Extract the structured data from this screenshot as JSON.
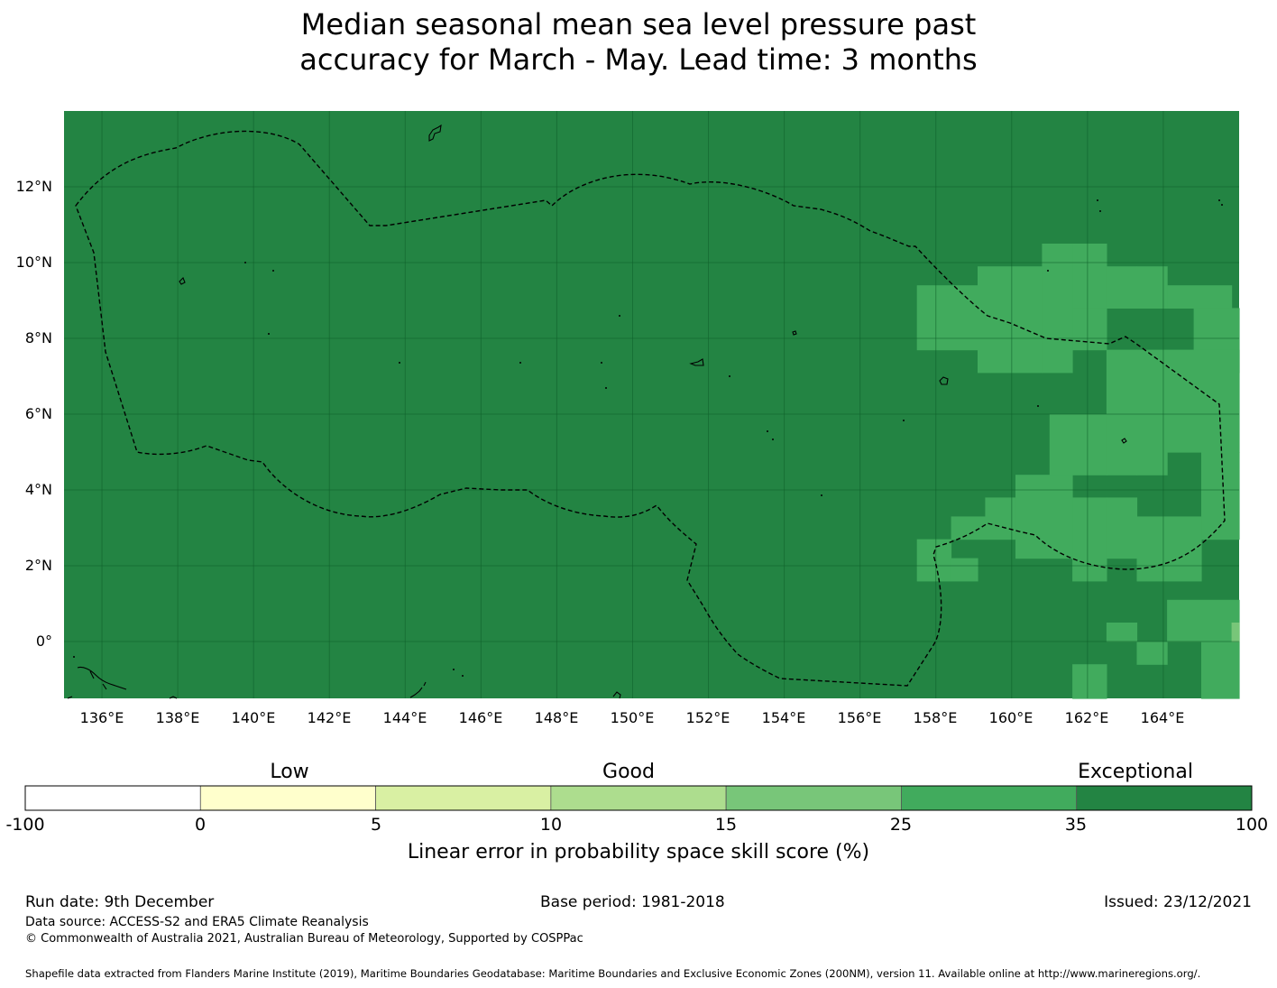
{
  "title": {
    "line1": "Median seasonal mean sea level pressure past",
    "line2": "accuracy for March - May. Lead time: 3 months"
  },
  "map": {
    "lon_range": [
      135.0,
      166.0
    ],
    "lat_range": [
      -1.5,
      14.0
    ],
    "lon_ticks": [
      "136°E",
      "138°E",
      "140°E",
      "142°E",
      "144°E",
      "146°E",
      "148°E",
      "150°E",
      "152°E",
      "154°E",
      "156°E",
      "158°E",
      "160°E",
      "162°E",
      "164°E"
    ],
    "lat_ticks": [
      "12°N",
      "10°N",
      "8°N",
      "6°N",
      "4°N",
      "2°N",
      "0°"
    ],
    "gridlines": true,
    "background_skill_class": "35-100",
    "eez_boundary": "dashed",
    "regions": [
      {
        "class": "25-35",
        "cells": [
          [
            157.5,
            159.1,
            7.7,
            9.4
          ],
          [
            159.1,
            160.8,
            7.1,
            9.9
          ],
          [
            160.8,
            161.6,
            7.1,
            10.5
          ],
          [
            161.6,
            162.5,
            8.8,
            10.5
          ],
          [
            162.5,
            163.3,
            8.8,
            9.9
          ],
          [
            163.3,
            164.1,
            8.8,
            9.9
          ],
          [
            161.6,
            162.5,
            7.7,
            8.8
          ],
          [
            164.1,
            165.8,
            8.8,
            9.4
          ],
          [
            164.8,
            166.0,
            7.1,
            8.8
          ]
        ]
      },
      {
        "class": "25-35",
        "cells": [
          [
            161.0,
            162.5,
            4.4,
            6.0
          ],
          [
            162.5,
            163.3,
            4.4,
            7.7
          ],
          [
            163.3,
            166.0,
            5.0,
            7.7
          ],
          [
            163.3,
            164.1,
            4.4,
            5.0
          ],
          [
            165.0,
            166.0,
            2.7,
            5.0
          ],
          [
            160.1,
            161.6,
            2.2,
            4.4
          ],
          [
            161.6,
            162.5,
            1.6,
            3.8
          ],
          [
            162.5,
            163.3,
            2.2,
            3.8
          ],
          [
            163.3,
            165.0,
            1.6,
            3.3
          ],
          [
            158.4,
            160.1,
            2.7,
            3.3
          ],
          [
            159.3,
            160.1,
            3.3,
            3.8
          ],
          [
            157.5,
            158.4,
            1.6,
            2.7
          ],
          [
            158.4,
            159.1,
            1.6,
            2.2
          ],
          [
            164.1,
            166.0,
            0.0,
            1.1
          ],
          [
            165.0,
            166.0,
            -1.5,
            0.0
          ],
          [
            162.5,
            163.3,
            0.0,
            0.5
          ],
          [
            163.3,
            164.1,
            -0.6,
            0.0
          ],
          [
            161.6,
            162.5,
            -1.5,
            -0.6
          ]
        ]
      },
      {
        "class": "15-25",
        "cells": [
          [
            165.8,
            166.0,
            0.0,
            0.5
          ]
        ]
      }
    ]
  },
  "colorbar": {
    "categories": [
      "Low",
      "Good",
      "Exceptional"
    ],
    "tick_labels": [
      "-100",
      "0",
      "5",
      "10",
      "15",
      "25",
      "35",
      "100"
    ],
    "classes": [
      {
        "range": "-100-0",
        "color": "#ffffff"
      },
      {
        "range": "0-5",
        "color": "#ffffcc"
      },
      {
        "range": "5-10",
        "color": "#d9f0a3"
      },
      {
        "range": "10-15",
        "color": "#addd8e"
      },
      {
        "range": "15-25",
        "color": "#78c679"
      },
      {
        "range": "25-35",
        "color": "#41ab5d"
      },
      {
        "range": "35-100",
        "color": "#238443"
      }
    ],
    "label": "Linear error in probability space skill score (%)"
  },
  "footer": {
    "run_date": "Run date: 9th December",
    "base_period": "Base period: 1981-2018",
    "issued": "Issued: 23/12/2021",
    "data_source": "Data source: ACCESS-S2 and ERA5 Climate Reanalysis",
    "copyright": "© Commonwealth of Australia 2021, Australian Bureau of Meteorology, Supported by COSPPac",
    "shapefile": "Shapefile data extracted from Flanders Marine Institute (2019), Maritime Boundaries Geodatabase: Maritime Boundaries and Exclusive Economic Zones (200NM), version 11. Available online at http://www.marineregions.org/."
  }
}
